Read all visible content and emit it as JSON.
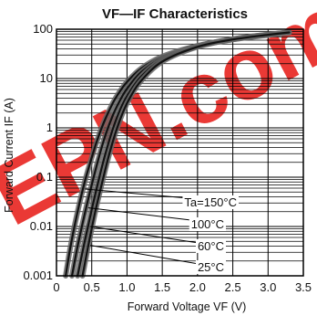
{
  "chart_data": {
    "type": "line",
    "title": "VF—IF Characteristics",
    "xlabel": "Forward Voltage  VF (V)",
    "ylabel": "Forward Current  IF (A)",
    "x_scale": "linear",
    "y_scale": "log",
    "xlim": [
      0,
      3.5
    ],
    "ylim": [
      0.001,
      100
    ],
    "x_ticks": [
      "0",
      "0.5",
      "1.0",
      "1.5",
      "2.0",
      "2.5",
      "3.0",
      "3.5"
    ],
    "y_ticks": [
      "100",
      "10",
      "1",
      "0.1",
      "0.01",
      "0.001"
    ],
    "grid": true,
    "series": [
      {
        "name": "Ta=150°C",
        "points": [
          [
            0.13,
            0.001
          ],
          [
            0.2,
            0.004
          ],
          [
            0.3,
            0.02
          ],
          [
            0.4,
            0.08
          ],
          [
            0.5,
            0.25
          ],
          [
            0.6,
            0.7
          ],
          [
            0.7,
            1.6
          ],
          [
            0.8,
            3.2
          ],
          [
            0.9,
            5.5
          ],
          [
            1.0,
            8.5
          ],
          [
            1.2,
            16
          ],
          [
            1.5,
            28
          ],
          [
            2.0,
            46
          ],
          [
            2.5,
            62
          ],
          [
            3.0,
            76
          ],
          [
            3.3,
            85
          ]
        ]
      },
      {
        "name": "100°C",
        "points": [
          [
            0.22,
            0.001
          ],
          [
            0.3,
            0.004
          ],
          [
            0.4,
            0.018
          ],
          [
            0.5,
            0.07
          ],
          [
            0.6,
            0.25
          ],
          [
            0.7,
            0.75
          ],
          [
            0.8,
            1.8
          ],
          [
            0.9,
            3.6
          ],
          [
            1.0,
            6.2
          ],
          [
            1.2,
            13.5
          ],
          [
            1.5,
            26
          ],
          [
            2.0,
            46
          ],
          [
            2.5,
            63
          ],
          [
            3.0,
            78
          ],
          [
            3.3,
            86
          ]
        ]
      },
      {
        "name": "60°C",
        "points": [
          [
            0.3,
            0.001
          ],
          [
            0.4,
            0.005
          ],
          [
            0.5,
            0.022
          ],
          [
            0.6,
            0.09
          ],
          [
            0.7,
            0.32
          ],
          [
            0.8,
            0.95
          ],
          [
            0.9,
            2.3
          ],
          [
            1.0,
            4.4
          ],
          [
            1.2,
            11
          ],
          [
            1.5,
            24
          ],
          [
            2.0,
            45
          ],
          [
            2.5,
            63
          ],
          [
            3.0,
            78
          ],
          [
            3.3,
            86
          ]
        ]
      },
      {
        "name": "25°C",
        "points": [
          [
            0.37,
            0.001
          ],
          [
            0.45,
            0.004
          ],
          [
            0.55,
            0.02
          ],
          [
            0.65,
            0.08
          ],
          [
            0.75,
            0.3
          ],
          [
            0.85,
            0.9
          ],
          [
            0.95,
            2.2
          ],
          [
            1.05,
            4.3
          ],
          [
            1.2,
            9
          ],
          [
            1.5,
            22
          ],
          [
            2.0,
            44
          ],
          [
            2.5,
            62
          ],
          [
            3.0,
            77
          ],
          [
            3.3,
            86
          ]
        ]
      }
    ],
    "legend_placement": "bottom-right",
    "watermark": "EPN.com"
  }
}
